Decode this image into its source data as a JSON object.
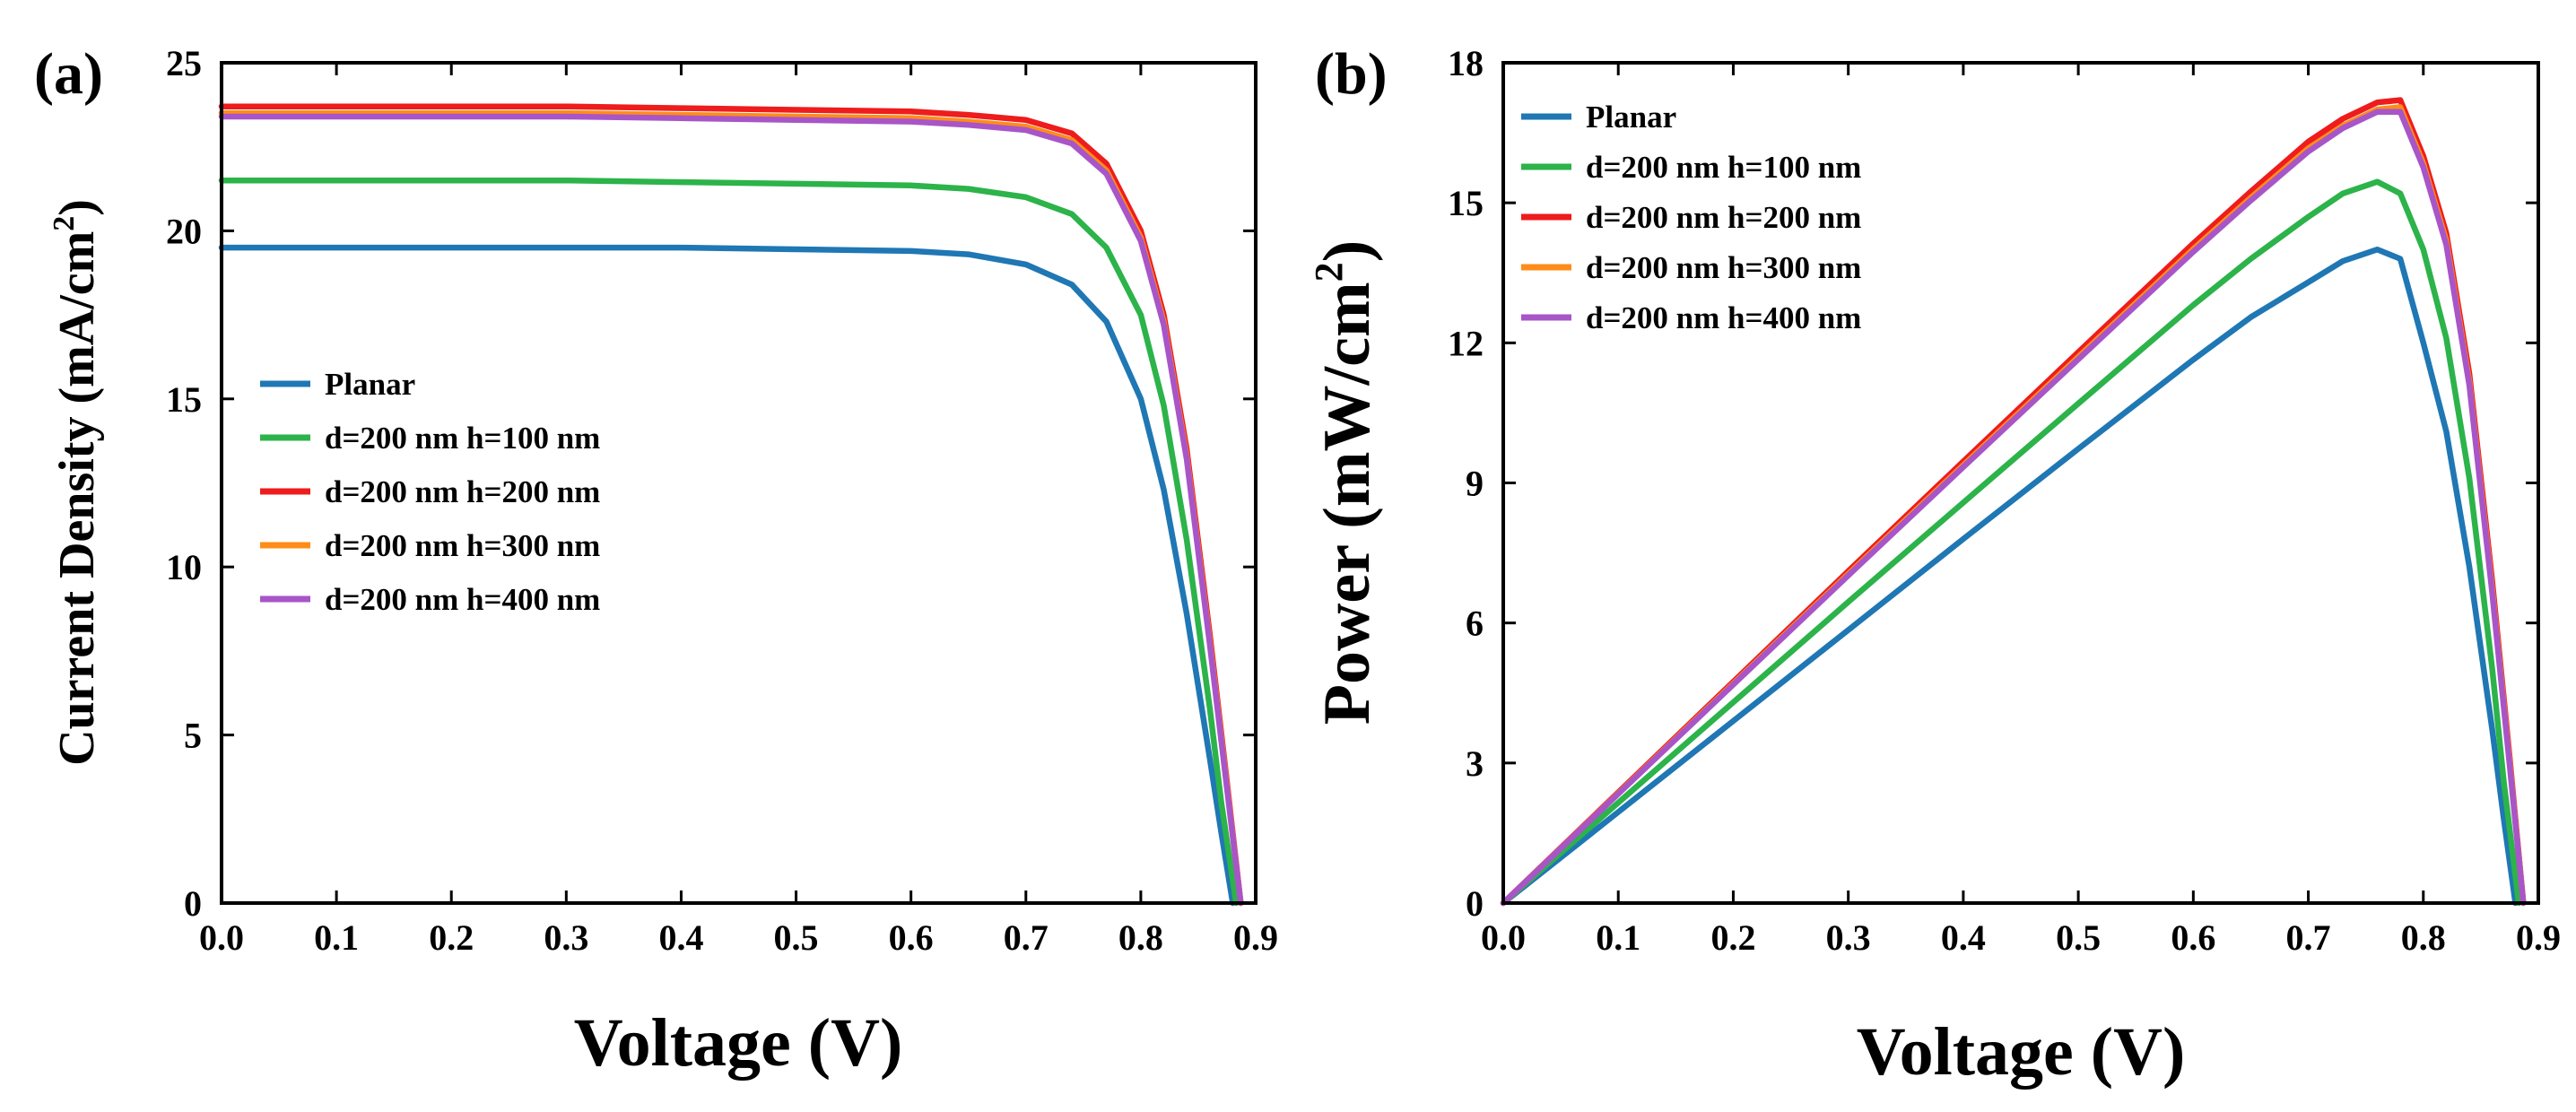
{
  "chart_data": [
    {
      "type": "line",
      "panel_label": "(a)",
      "title": "",
      "xlabel": "Voltage (V)",
      "ylabel": "Current Density (mA/cm",
      "ylabel_sup": "2",
      "ylabel_end": ")",
      "xlim": [
        0.0,
        0.9
      ],
      "ylim": [
        0,
        25
      ],
      "xticks": [
        0.0,
        0.1,
        0.2,
        0.3,
        0.4,
        0.5,
        0.6,
        0.7,
        0.8,
        0.9
      ],
      "xtick_labels": [
        "0.0",
        "0.1",
        "0.2",
        "0.3",
        "0.4",
        "0.5",
        "0.6",
        "0.7",
        "0.8",
        "0.9"
      ],
      "yticks": [
        0,
        5,
        10,
        15,
        20,
        25
      ],
      "ytick_labels": [
        "0",
        "5",
        "10",
        "15",
        "20",
        "25"
      ],
      "legend_position": "center-left",
      "series": [
        {
          "name": "Planar",
          "color": "#1f77b4",
          "x": [
            0.0,
            0.1,
            0.2,
            0.3,
            0.4,
            0.5,
            0.6,
            0.65,
            0.7,
            0.74,
            0.77,
            0.8,
            0.82,
            0.84,
            0.86,
            0.87,
            0.88
          ],
          "y": [
            19.5,
            19.5,
            19.5,
            19.5,
            19.5,
            19.45,
            19.4,
            19.3,
            19.0,
            18.4,
            17.3,
            15.0,
            12.3,
            8.6,
            4.3,
            2.1,
            0
          ]
        },
        {
          "name": "d=200 nm h=100 nm",
          "color": "#2cb34a",
          "x": [
            0.0,
            0.1,
            0.2,
            0.3,
            0.4,
            0.5,
            0.6,
            0.65,
            0.7,
            0.74,
            0.77,
            0.8,
            0.82,
            0.84,
            0.86,
            0.87,
            0.883
          ],
          "y": [
            21.5,
            21.5,
            21.5,
            21.5,
            21.45,
            21.4,
            21.35,
            21.25,
            21.0,
            20.5,
            19.5,
            17.5,
            14.8,
            10.8,
            5.8,
            3.0,
            0
          ]
        },
        {
          "name": "d=200 nm h=200 nm",
          "color": "#ee1c1c",
          "x": [
            0.0,
            0.1,
            0.2,
            0.3,
            0.4,
            0.5,
            0.6,
            0.65,
            0.7,
            0.74,
            0.77,
            0.8,
            0.82,
            0.84,
            0.86,
            0.875,
            0.887
          ],
          "y": [
            23.7,
            23.7,
            23.7,
            23.7,
            23.65,
            23.6,
            23.55,
            23.45,
            23.3,
            22.9,
            22.0,
            20.0,
            17.5,
            13.5,
            8.0,
            3.6,
            0
          ]
        },
        {
          "name": "d=200 nm h=300 nm",
          "color": "#ff8c1a",
          "x": [
            0.0,
            0.1,
            0.2,
            0.3,
            0.4,
            0.5,
            0.6,
            0.65,
            0.7,
            0.74,
            0.77,
            0.8,
            0.82,
            0.84,
            0.86,
            0.875,
            0.887
          ],
          "y": [
            23.5,
            23.5,
            23.5,
            23.5,
            23.45,
            23.4,
            23.35,
            23.25,
            23.1,
            22.7,
            21.8,
            19.8,
            17.3,
            13.3,
            7.8,
            3.5,
            0
          ]
        },
        {
          "name": "d=200 nm h=400 nm",
          "color": "#a855c8",
          "x": [
            0.0,
            0.1,
            0.2,
            0.3,
            0.4,
            0.5,
            0.6,
            0.65,
            0.7,
            0.74,
            0.77,
            0.8,
            0.82,
            0.84,
            0.86,
            0.875,
            0.887
          ],
          "y": [
            23.4,
            23.4,
            23.4,
            23.4,
            23.35,
            23.3,
            23.25,
            23.15,
            23.0,
            22.6,
            21.7,
            19.7,
            17.2,
            13.2,
            7.7,
            3.4,
            0
          ]
        }
      ]
    },
    {
      "type": "line",
      "panel_label": "(b)",
      "title": "",
      "xlabel": "Voltage (V)",
      "ylabel": "Power (mW/cm",
      "ylabel_sup": "2",
      "ylabel_end": ")",
      "xlim": [
        0.0,
        0.9
      ],
      "ylim": [
        0,
        18
      ],
      "xticks": [
        0.0,
        0.1,
        0.2,
        0.3,
        0.4,
        0.5,
        0.6,
        0.7,
        0.8,
        0.9
      ],
      "xtick_labels": [
        "0.0",
        "0.1",
        "0.2",
        "0.3",
        "0.4",
        "0.5",
        "0.6",
        "0.7",
        "0.8",
        "0.9"
      ],
      "yticks": [
        0,
        3,
        6,
        9,
        12,
        15,
        18
      ],
      "ytick_labels": [
        "0",
        "3",
        "6",
        "9",
        "12",
        "15",
        "18"
      ],
      "legend_position": "top-left",
      "series": [
        {
          "name": "Planar",
          "color": "#1f77b4",
          "x": [
            0.0,
            0.1,
            0.2,
            0.3,
            0.4,
            0.5,
            0.6,
            0.65,
            0.7,
            0.73,
            0.76,
            0.78,
            0.8,
            0.82,
            0.84,
            0.86,
            0.87,
            0.88
          ],
          "y": [
            0,
            1.95,
            3.9,
            5.85,
            7.8,
            9.73,
            11.64,
            12.55,
            13.3,
            13.75,
            14.0,
            13.8,
            12.0,
            10.1,
            7.2,
            3.7,
            1.8,
            0
          ]
        },
        {
          "name": "d=200 nm h=100 nm",
          "color": "#2cb34a",
          "x": [
            0.0,
            0.1,
            0.2,
            0.3,
            0.4,
            0.5,
            0.6,
            0.65,
            0.7,
            0.73,
            0.76,
            0.78,
            0.8,
            0.82,
            0.84,
            0.86,
            0.87,
            0.883
          ],
          "y": [
            0,
            2.15,
            4.3,
            6.45,
            8.58,
            10.7,
            12.81,
            13.8,
            14.7,
            15.2,
            15.45,
            15.2,
            14.0,
            12.1,
            9.1,
            5.0,
            2.6,
            0
          ]
        },
        {
          "name": "d=200 nm h=200 nm",
          "color": "#ee1c1c",
          "x": [
            0.0,
            0.1,
            0.2,
            0.3,
            0.4,
            0.5,
            0.6,
            0.65,
            0.7,
            0.73,
            0.76,
            0.78,
            0.8,
            0.82,
            0.84,
            0.86,
            0.875,
            0.887
          ],
          "y": [
            0,
            2.37,
            4.74,
            7.11,
            9.46,
            11.8,
            14.13,
            15.24,
            16.31,
            16.8,
            17.15,
            17.2,
            16.0,
            14.35,
            11.34,
            6.88,
            3.15,
            0
          ]
        },
        {
          "name": "d=200 nm h=300 nm",
          "color": "#ff8c1a",
          "x": [
            0.0,
            0.1,
            0.2,
            0.3,
            0.4,
            0.5,
            0.6,
            0.65,
            0.7,
            0.73,
            0.76,
            0.78,
            0.8,
            0.82,
            0.84,
            0.86,
            0.875,
            0.887
          ],
          "y": [
            0,
            2.35,
            4.7,
            7.05,
            9.38,
            11.7,
            14.01,
            15.11,
            16.17,
            16.65,
            17.0,
            17.05,
            15.84,
            14.19,
            11.17,
            6.71,
            3.06,
            0
          ]
        },
        {
          "name": "d=200 nm h=400 nm",
          "color": "#a855c8",
          "x": [
            0.0,
            0.1,
            0.2,
            0.3,
            0.4,
            0.5,
            0.6,
            0.65,
            0.7,
            0.73,
            0.76,
            0.78,
            0.8,
            0.82,
            0.84,
            0.86,
            0.875,
            0.887
          ],
          "y": [
            0,
            2.34,
            4.68,
            7.02,
            9.34,
            11.65,
            13.95,
            15.05,
            16.1,
            16.6,
            16.95,
            16.95,
            15.76,
            14.1,
            11.09,
            6.62,
            2.98,
            0
          ]
        }
      ]
    }
  ]
}
